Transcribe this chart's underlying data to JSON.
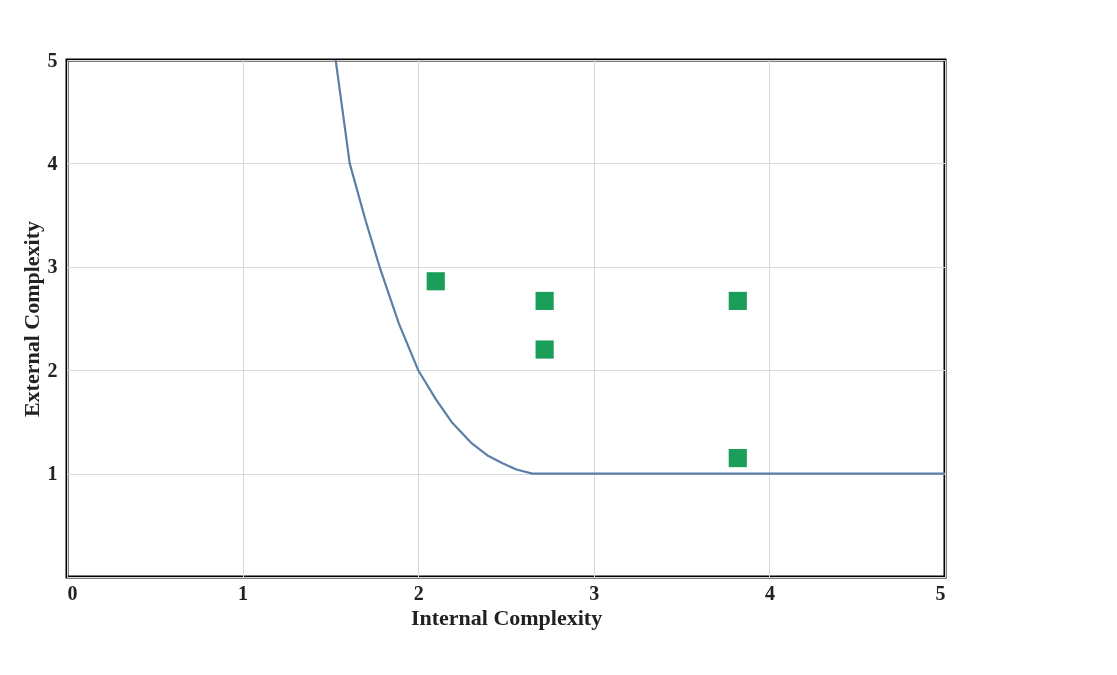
{
  "chart_data": {
    "type": "scatter",
    "xlabel": "Internal Complexity",
    "ylabel": "External Complexity",
    "xlim": [
      0,
      5
    ],
    "ylim": [
      0,
      5
    ],
    "xticks": [
      0,
      1,
      2,
      3,
      4,
      5
    ],
    "yticks": [
      {
        "value": 0,
        "label": null
      },
      1,
      2,
      3,
      4,
      5
    ],
    "grid": true,
    "series": [
      {
        "type": "line",
        "color": "#5b7fa6",
        "marker": "none",
        "line_style": "solid",
        "x": [
          1.53,
          1.57,
          1.61,
          1.7,
          1.78,
          1.89,
          2.0,
          2.1,
          2.19,
          2.3,
          2.4,
          2.48,
          2.56,
          2.65,
          3.0,
          4.0,
          5.0
        ],
        "values": [
          5.0,
          4.5,
          4.0,
          3.45,
          3.0,
          2.45,
          2.0,
          1.72,
          1.5,
          1.3,
          1.17,
          1.1,
          1.04,
          1.0,
          1.0,
          1.0,
          1.0
        ]
      },
      {
        "color": "#1a9e5a",
        "marker": "square",
        "x": [
          2.1,
          2.72,
          2.72,
          3.82,
          3.82
        ],
        "values": [
          2.86,
          2.67,
          2.2,
          2.67,
          1.15
        ]
      }
    ]
  }
}
